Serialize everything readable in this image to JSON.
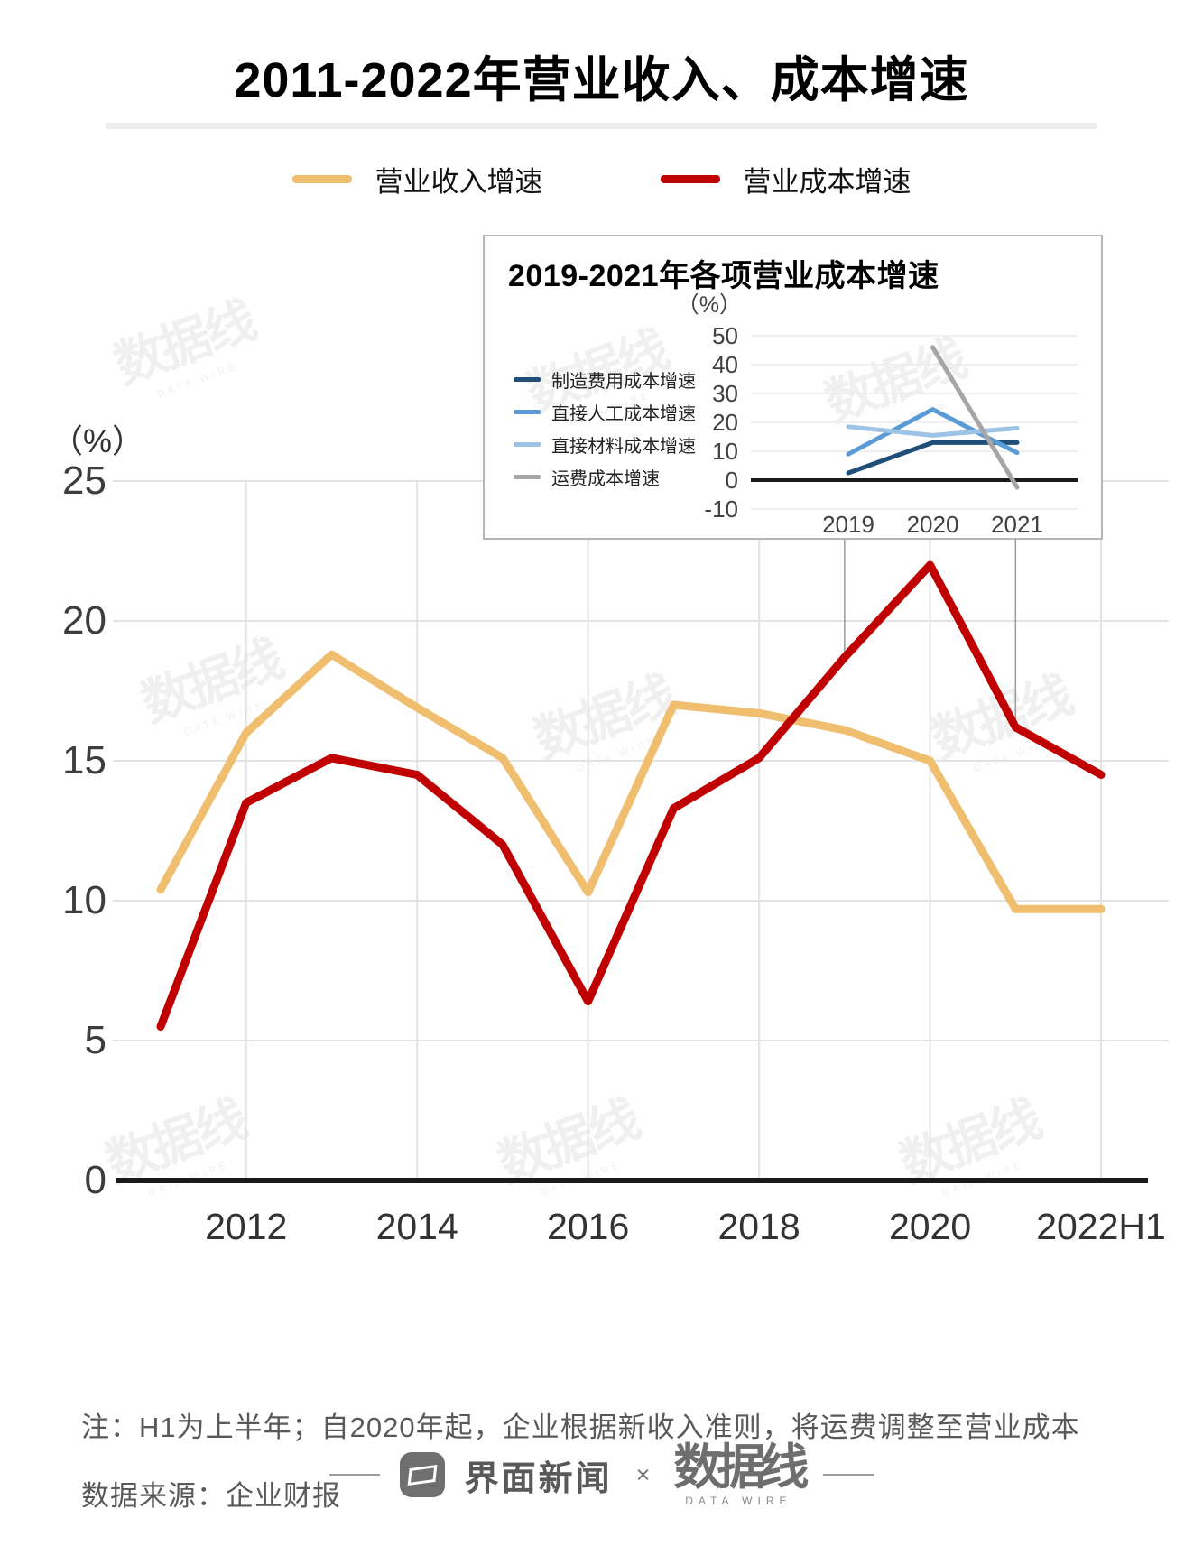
{
  "page": {
    "title": "2011-2022年营业收入、成本增速",
    "notes": [
      "注：H1为上半年；自2020年起，企业根据新收入准则，将运费调整至营业成本",
      "数据来源：企业财报"
    ],
    "watermark": {
      "text": "数据线",
      "subtext": "DATA WIRE"
    },
    "footer": {
      "brand_left": "界面新闻",
      "separator": "×",
      "brand_right": "数据线",
      "brand_right_sub": "DATA WIRE"
    }
  },
  "chart_data": [
    {
      "id": "main",
      "type": "line",
      "title": "2011-2022年营业收入、成本增速",
      "unit_label": "（%）",
      "x": [
        2011,
        2012,
        2013,
        2014,
        2015,
        2016,
        2017,
        2018,
        2019,
        2020,
        2021,
        "2022H1"
      ],
      "x_ticks": [
        {
          "label": "2012",
          "index": 1
        },
        {
          "label": "2014",
          "index": 3
        },
        {
          "label": "2016",
          "index": 5
        },
        {
          "label": "2018",
          "index": 7
        },
        {
          "label": "2020",
          "index": 9
        },
        {
          "label": "2022H1",
          "index": 11
        }
      ],
      "y_ticks": [
        0,
        5,
        10,
        15,
        20,
        25
      ],
      "ylim": [
        0,
        25
      ],
      "grid": true,
      "legend_position": "top",
      "series": [
        {
          "name": "营业收入增速",
          "color": "#EFBE6F",
          "values": [
            10.4,
            16.0,
            18.8,
            16.9,
            15.1,
            10.3,
            17.0,
            16.7,
            16.1,
            15.0,
            9.7,
            9.7
          ]
        },
        {
          "name": "营业成本增速",
          "color": "#C00000",
          "values": [
            5.5,
            13.5,
            15.1,
            14.5,
            12.0,
            6.4,
            13.3,
            15.1,
            18.7,
            22.0,
            16.2,
            14.5
          ]
        }
      ],
      "callout_years": [
        2019,
        2021
      ],
      "callout_target_series": "营业成本增速"
    },
    {
      "id": "inset",
      "type": "line",
      "title": "2019-2021年各项营业成本增速",
      "unit_label": "（%）",
      "x": [
        "2019",
        "2020",
        "2021"
      ],
      "y_ticks": [
        -10,
        0,
        10,
        20,
        30,
        40,
        50
      ],
      "ylim": [
        -10,
        50
      ],
      "grid": true,
      "legend_position": "left",
      "series": [
        {
          "name": "制造费用成本增速",
          "color": "#1F4E79",
          "values": [
            2.5,
            13.0,
            13.0
          ]
        },
        {
          "name": "直接人工成本增速",
          "color": "#5B9BD5",
          "values": [
            9.0,
            24.5,
            9.5
          ]
        },
        {
          "name": "直接材料成本增速",
          "color": "#9DC3E6",
          "values": [
            18.5,
            15.5,
            18.0
          ]
        },
        {
          "name": "运费成本增速",
          "color": "#A6A6A6",
          "values": [
            null,
            46.0,
            -2.5
          ]
        }
      ]
    }
  ]
}
